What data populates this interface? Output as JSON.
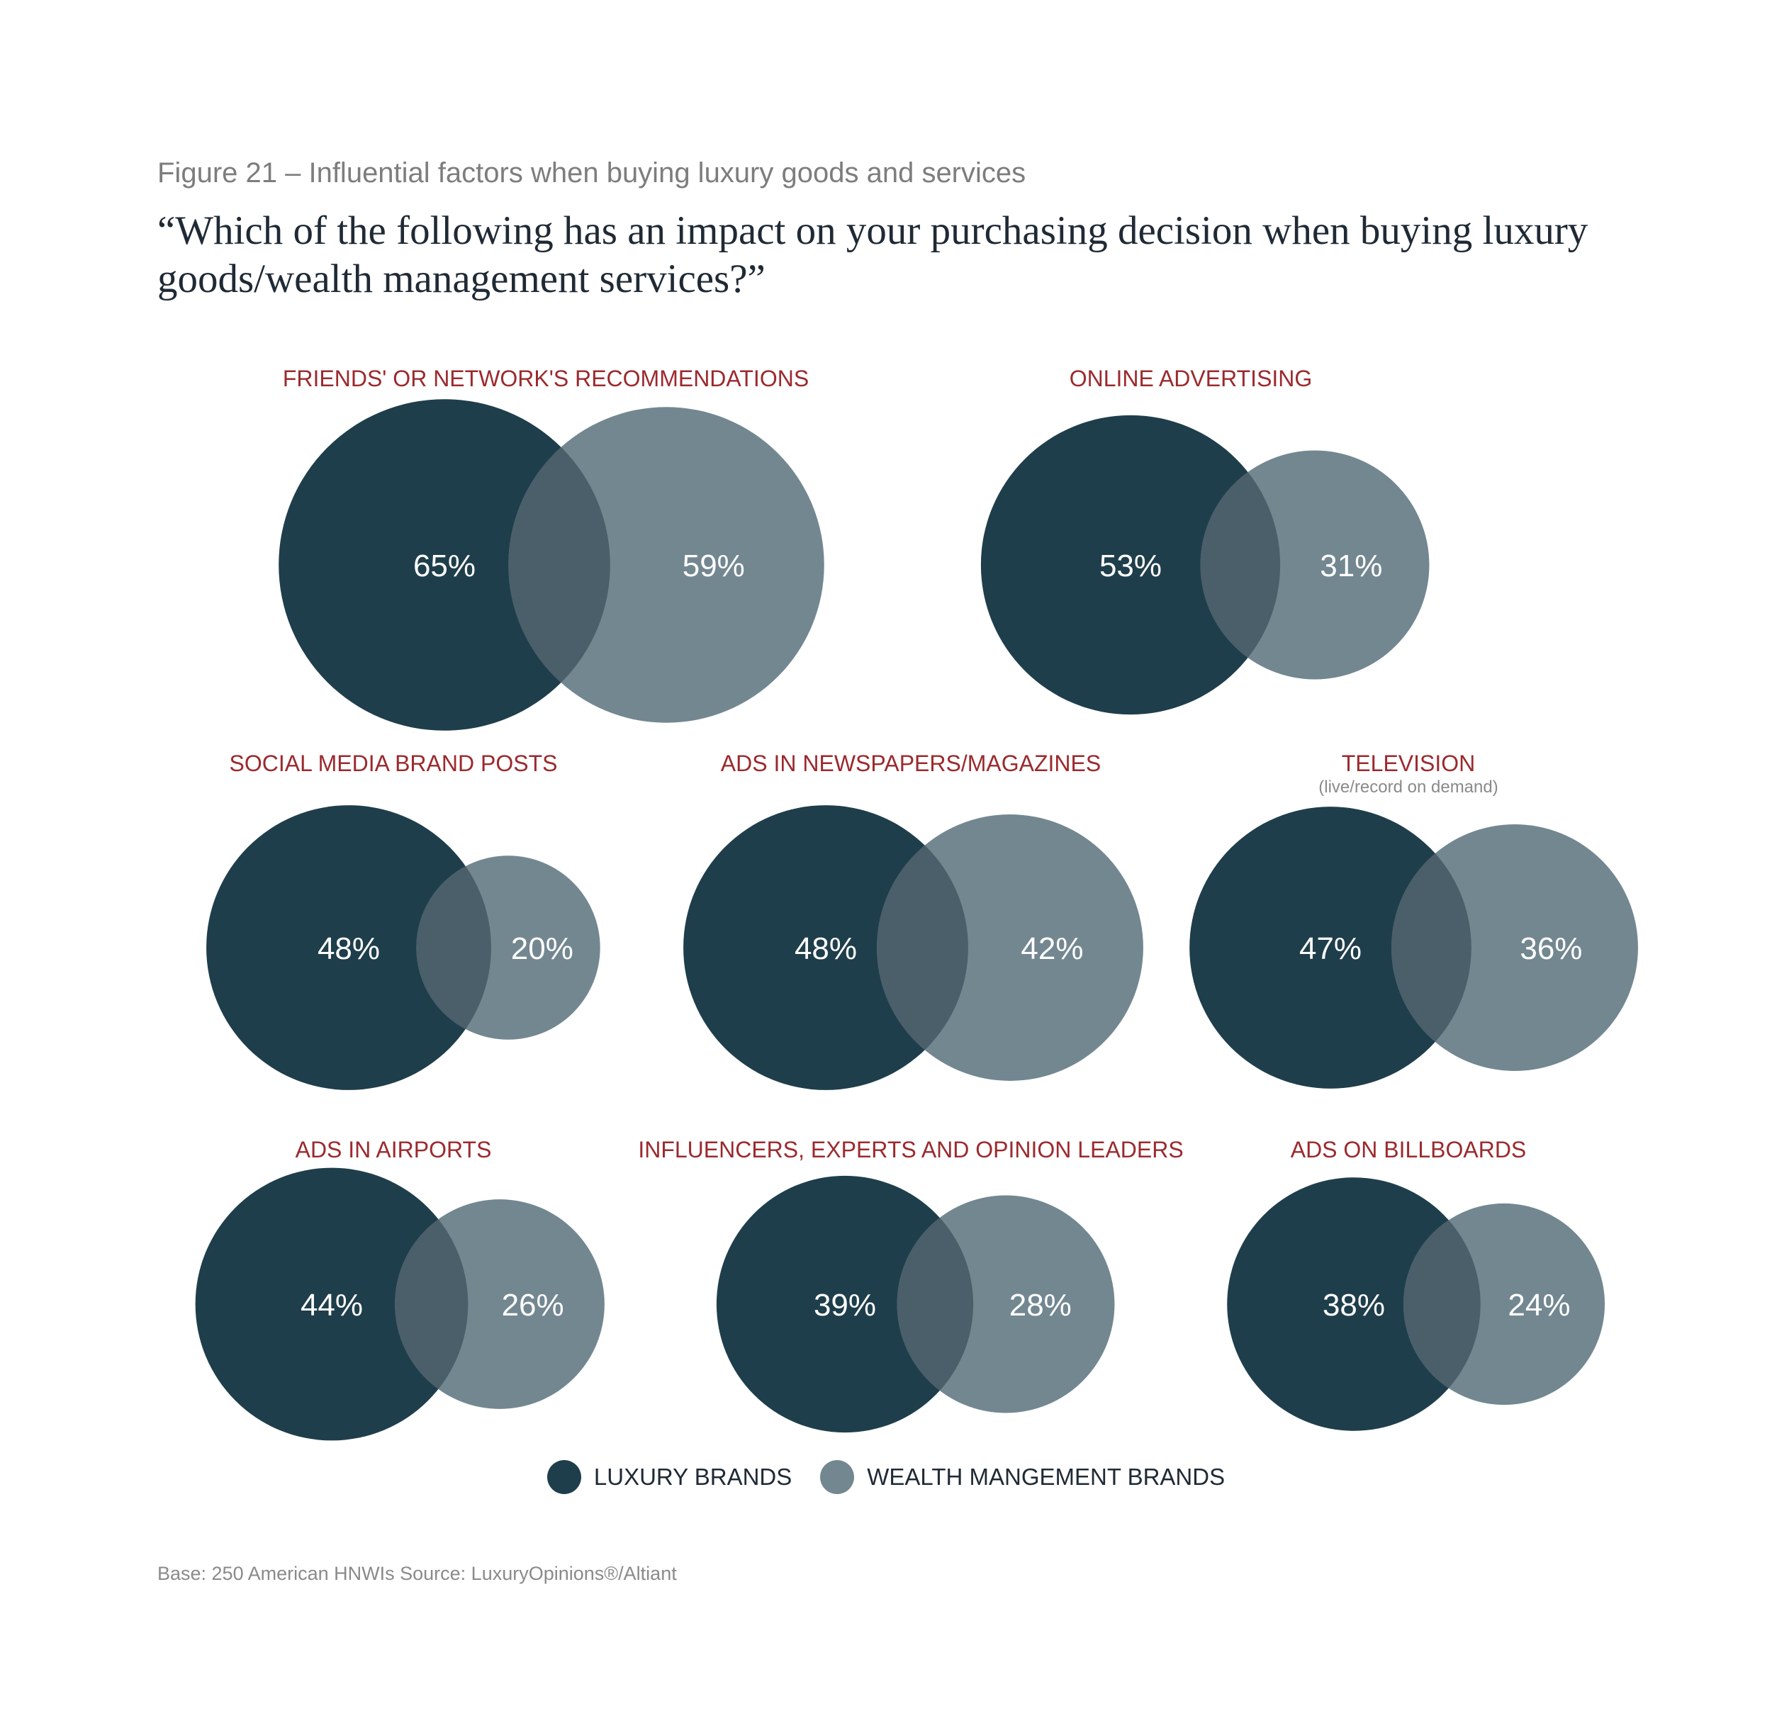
{
  "header": {
    "figure_label": "Figure 21 – Influential factors when buying luxury goods and services",
    "question": "“Which of the following has an impact on your purchasing decision when buying luxury goods/wealth management services?”"
  },
  "colors": {
    "luxury": "#1f3e4b",
    "wealth": "#738791",
    "overlap": "#4a5f6a",
    "title": "#9b2a2e"
  },
  "chart_data": {
    "type": "bubble-pairs",
    "unit": "%",
    "series": [
      {
        "name": "LUXURY BRANDS"
      },
      {
        "name": "WEALTH MANGEMENT BRANDS"
      }
    ],
    "categories": [
      {
        "title": "FRIENDS' OR NETWORK'S RECOMMENDATIONS",
        "subtitle": "",
        "luxury": 65,
        "wealth": 59,
        "luxury_label": "65%",
        "wealth_label": "59%"
      },
      {
        "title": "ONLINE ADVERTISING",
        "subtitle": "",
        "luxury": 53,
        "wealth": 31,
        "luxury_label": "53%",
        "wealth_label": "31%"
      },
      {
        "title": "SOCIAL MEDIA BRAND POSTS",
        "subtitle": "",
        "luxury": 48,
        "wealth": 20,
        "luxury_label": "48%",
        "wealth_label": "20%"
      },
      {
        "title": "ADS IN NEWSPAPERS/MAGAZINES",
        "subtitle": "",
        "luxury": 48,
        "wealth": 42,
        "luxury_label": "48%",
        "wealth_label": "42%"
      },
      {
        "title": "TELEVISION",
        "subtitle": "(live/record on demand)",
        "luxury": 47,
        "wealth": 36,
        "luxury_label": "47%",
        "wealth_label": "36%"
      },
      {
        "title": "ADS IN AIRPORTS",
        "subtitle": "",
        "luxury": 44,
        "wealth": 26,
        "luxury_label": "44%",
        "wealth_label": "26%"
      },
      {
        "title": "INFLUENCERS, EXPERTS AND OPINION LEADERS",
        "subtitle": "",
        "luxury": 39,
        "wealth": 28,
        "luxury_label": "39%",
        "wealth_label": "28%"
      },
      {
        "title": "ADS ON BILLBOARDS",
        "subtitle": "",
        "luxury": 38,
        "wealth": 24,
        "luxury_label": "38%",
        "wealth_label": "24%"
      }
    ]
  },
  "legend": {
    "luxury_label": "LUXURY BRANDS",
    "wealth_label": "WEALTH MANGEMENT BRANDS"
  },
  "footnote": "Base: 250 American HNWIs  Source: LuxuryOpinions®/Altiant"
}
